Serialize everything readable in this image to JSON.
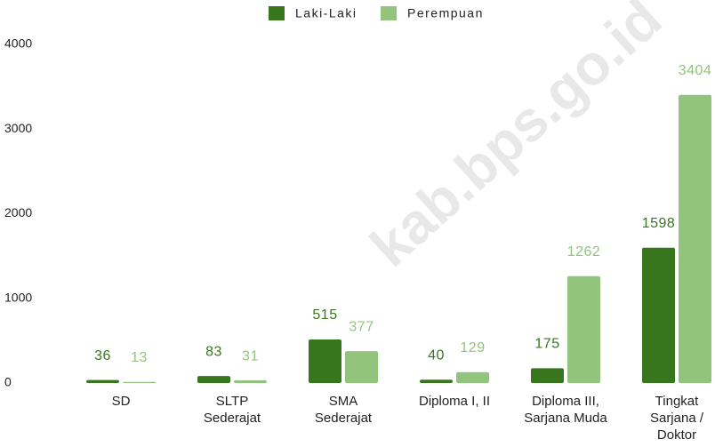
{
  "chart_data": {
    "type": "bar",
    "categories": [
      [
        "SD"
      ],
      [
        "SLTP",
        "Sederajat"
      ],
      [
        "SMA",
        "Sederajat"
      ],
      [
        "Diploma I, II"
      ],
      [
        "Diploma III,",
        "Sarjana Muda"
      ],
      [
        "Tingkat",
        "Sarjana /",
        "Doktor"
      ]
    ],
    "series": [
      {
        "name": "Laki-Laki",
        "color": "#38761d",
        "values": [
          36,
          83,
          515,
          40,
          175,
          1598
        ]
      },
      {
        "name": "Perempuan",
        "color": "#93c47d",
        "values": [
          13,
          31,
          377,
          129,
          1262,
          3404
        ]
      }
    ],
    "ylim": [
      0,
      4000
    ],
    "yticks": [
      0,
      1000,
      2000,
      3000,
      4000
    ],
    "grid": false,
    "legend": "top",
    "watermark": "kab.bps.go.id"
  }
}
